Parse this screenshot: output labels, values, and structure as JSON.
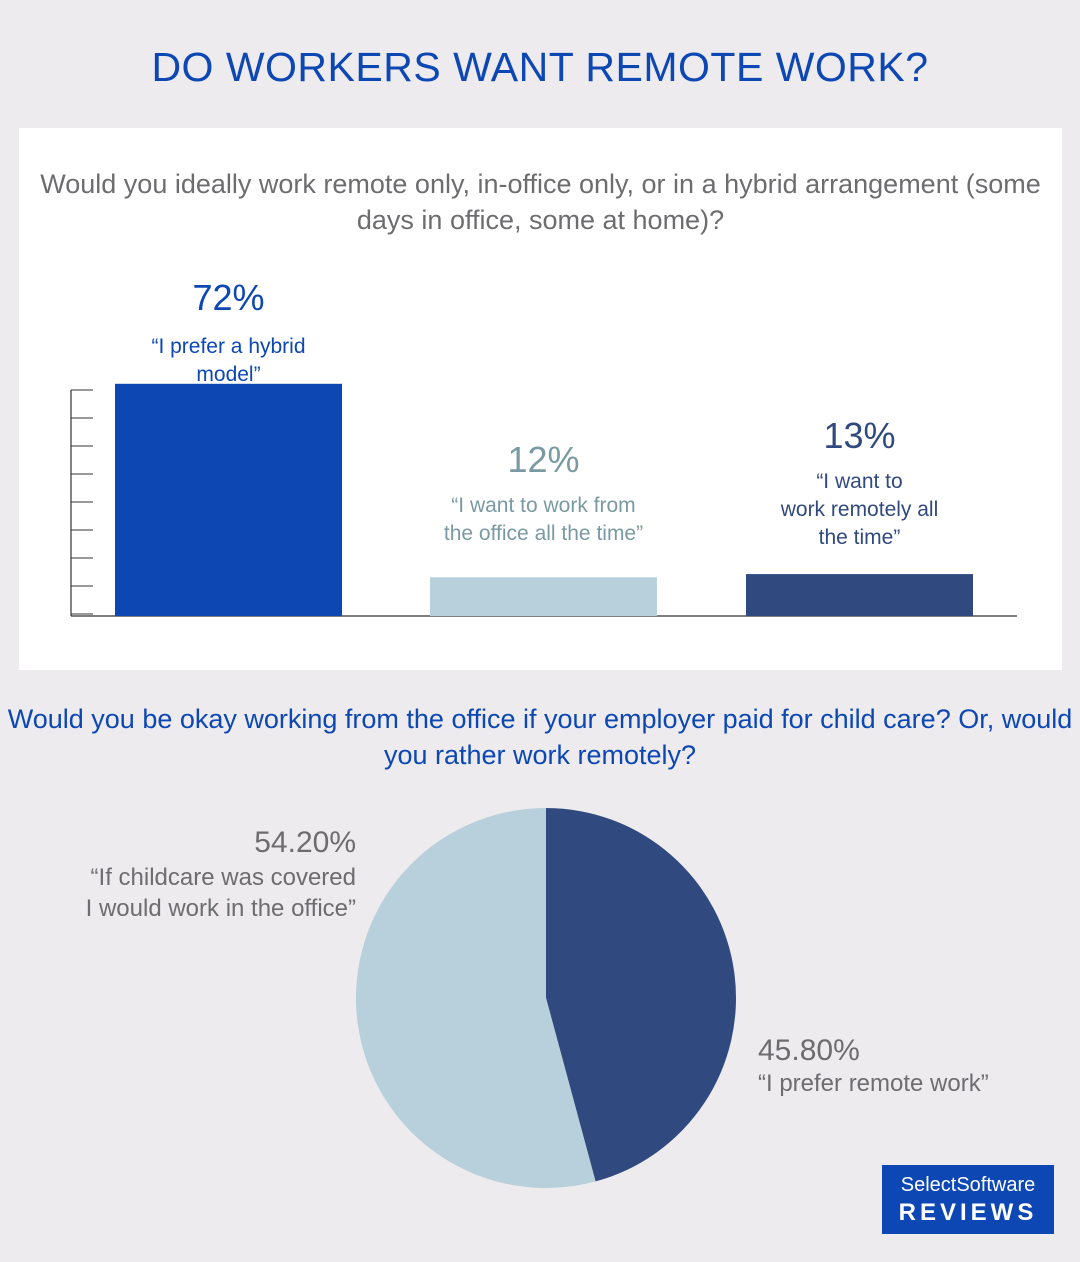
{
  "title": "DO WORKERS WANT REMOTE WORK?",
  "colors": {
    "brand_blue": "#0c47b4",
    "light_blue": "#b7d0db",
    "navy": "#304a7f",
    "gray_text": "#6d6d70",
    "background": "#edebee",
    "panel": "#ffffff"
  },
  "chart_data": [
    {
      "type": "bar",
      "title": "Would you ideally work remote only, in-office only, or in a hybrid arrangement (some days in office, some at home)?",
      "categories": [
        "“I prefer a hybrid model”",
        "“I want to work from the office all the time”",
        "“I want to work remotely all the time”"
      ],
      "values": [
        72,
        12,
        13
      ],
      "value_labels": [
        "72%",
        "12%",
        "13%"
      ],
      "unit": "%",
      "colors": [
        "#0c47b4",
        "#b7d0db",
        "#304a7f"
      ],
      "ylim": [
        0,
        80
      ],
      "grid": false,
      "note_lines": [
        [
          "“I prefer a hybrid",
          "model”"
        ],
        [
          "“I want to work from",
          "the office all the time”"
        ],
        [
          "“I want to",
          "work remotely all",
          "the time”"
        ]
      ]
    },
    {
      "type": "pie",
      "title": "Would you be okay working from the office if your employer paid for child care? Or, would you rather work remotely?",
      "slices": [
        {
          "label": "“I prefer remote work”",
          "value": 45.8,
          "value_label": "45.80%",
          "color": "#304a7f",
          "note_lines": [
            "“I prefer remote work”"
          ]
        },
        {
          "label": "“If childcare was covered I would work in the office”",
          "value": 54.2,
          "value_label": "54.20%",
          "color": "#b7d0db",
          "note_lines": [
            "“If childcare was covered",
            "I would work in the office”"
          ]
        }
      ]
    }
  ],
  "logo": {
    "line1": "SelectSoftware",
    "line2": "REVIEWS"
  }
}
